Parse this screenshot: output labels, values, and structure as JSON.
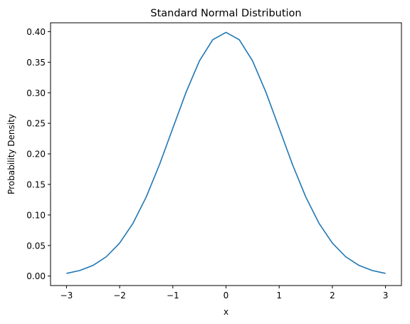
{
  "chart_data": {
    "type": "line",
    "title": "Standard Normal Distribution",
    "xlabel": "x",
    "ylabel": "Probability Density",
    "xlim": [
      -3.3,
      3.3
    ],
    "ylim": [
      -0.0155,
      0.4145
    ],
    "xticks": [
      -3,
      -2,
      -1,
      0,
      1,
      2,
      3
    ],
    "xtick_labels": [
      "−3",
      "−2",
      "−1",
      "0",
      "1",
      "2",
      "3"
    ],
    "yticks": [
      0.0,
      0.05,
      0.1,
      0.15,
      0.2,
      0.25,
      0.3,
      0.35,
      0.4
    ],
    "ytick_labels": [
      "0.00",
      "0.05",
      "0.10",
      "0.15",
      "0.20",
      "0.25",
      "0.30",
      "0.35",
      "0.40"
    ],
    "grid": false,
    "series": [
      {
        "color": "#1f77b4",
        "x": [
          -3.0,
          -2.75,
          -2.5,
          -2.25,
          -2.0,
          -1.75,
          -1.5,
          -1.25,
          -1.0,
          -0.75,
          -0.5,
          -0.25,
          0.0,
          0.25,
          0.5,
          0.75,
          1.0,
          1.25,
          1.5,
          1.75,
          2.0,
          2.25,
          2.5,
          2.75,
          3.0
        ],
        "y": [
          0.0044,
          0.0091,
          0.0175,
          0.0317,
          0.054,
          0.0863,
          0.1295,
          0.1826,
          0.242,
          0.3011,
          0.3521,
          0.3867,
          0.3989,
          0.3867,
          0.3521,
          0.3011,
          0.242,
          0.1826,
          0.1295,
          0.0863,
          0.054,
          0.0317,
          0.0175,
          0.0091,
          0.0044
        ]
      }
    ]
  }
}
